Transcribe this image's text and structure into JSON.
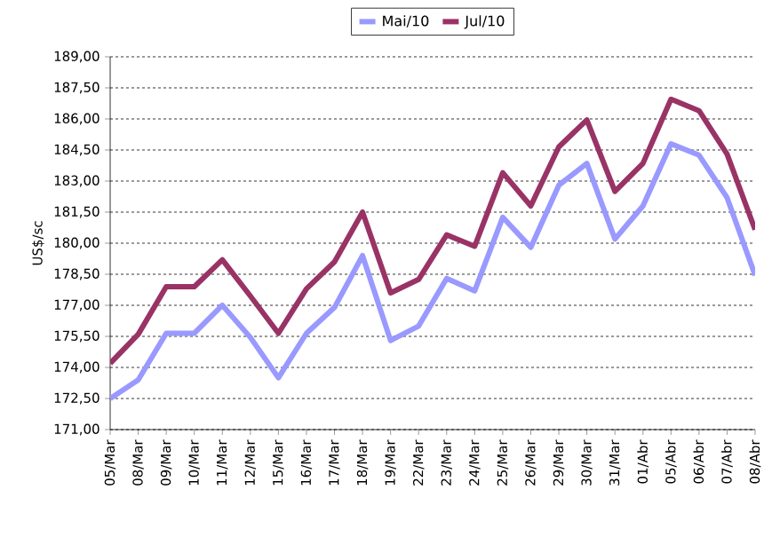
{
  "chart_data": {
    "type": "line",
    "ylabel": "US$/sc",
    "categories": [
      "05/Mar",
      "08/Mar",
      "09/Mar",
      "10/Mar",
      "11/Mar",
      "12/Mar",
      "15/Mar",
      "16/Mar",
      "17/Mar",
      "18/Mar",
      "19/Mar",
      "22/Mar",
      "23/Mar",
      "24/Mar",
      "25/Mar",
      "26/Mar",
      "29/Mar",
      "30/Mar",
      "31/Mar",
      "01/Abr",
      "05/Abr",
      "06/Abr",
      "07/Abr",
      "08/Abr"
    ],
    "series": [
      {
        "name": "Mai/10",
        "color": "#9999ff",
        "values": [
          172.5,
          173.4,
          175.65,
          175.65,
          177.0,
          175.45,
          173.5,
          175.65,
          176.9,
          179.4,
          175.3,
          176.0,
          178.3,
          177.7,
          181.25,
          179.8,
          182.8,
          183.85,
          180.2,
          181.8,
          184.8,
          184.25,
          182.2,
          178.45
        ]
      },
      {
        "name": "Jul/10",
        "color": "#993366",
        "values": [
          174.2,
          175.6,
          177.9,
          177.9,
          179.2,
          177.45,
          175.65,
          177.8,
          179.1,
          181.5,
          177.6,
          178.25,
          180.4,
          179.85,
          183.4,
          181.8,
          184.65,
          185.95,
          182.5,
          183.85,
          186.95,
          186.4,
          184.3,
          180.65
        ]
      }
    ],
    "ylim": [
      171,
      189
    ],
    "yticks": [
      {
        "value": 171,
        "label": "171,00"
      },
      {
        "value": 172.5,
        "label": "172,50"
      },
      {
        "value": 174,
        "label": "174,00"
      },
      {
        "value": 175.5,
        "label": "175,50"
      },
      {
        "value": 177,
        "label": "177,00"
      },
      {
        "value": 178.5,
        "label": "178,50"
      },
      {
        "value": 180,
        "label": "180,00"
      },
      {
        "value": 181.5,
        "label": "181,50"
      },
      {
        "value": 183,
        "label": "183,00"
      },
      {
        "value": 184.5,
        "label": "184,50"
      },
      {
        "value": 186,
        "label": "186,00"
      },
      {
        "value": 187.5,
        "label": "187,50"
      },
      {
        "value": 189,
        "label": "189,00"
      }
    ],
    "grid": "y",
    "legend": "top",
    "line_style": "solid"
  }
}
